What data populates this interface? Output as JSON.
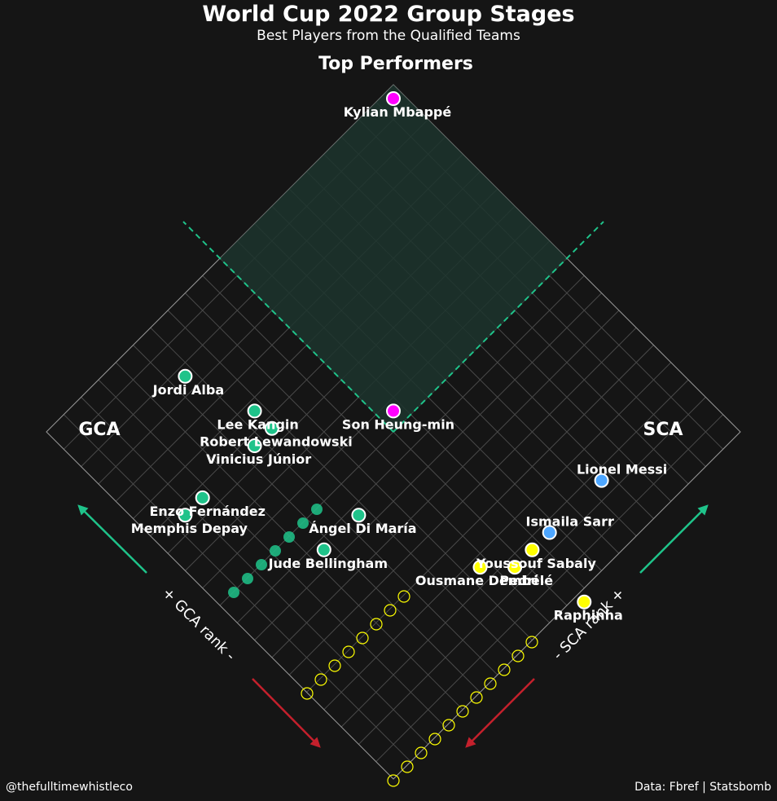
{
  "header": {
    "title": "World Cup 2022 Group Stages",
    "subtitle": "Best Players from the Qualified Teams"
  },
  "footer": {
    "credit": "@thefulltimewhistleco",
    "source": "Data: Fbref | Statsbomb"
  },
  "colors": {
    "background": "#151515",
    "grid": "#4a4a4a",
    "outline": "#9a9a9a",
    "top_region": "#1c342d",
    "teal": "#1fc38a",
    "red": "#c4202c",
    "magenta": "#ff00ff",
    "blue": "#4da6ff",
    "yellow": "#ffff00",
    "green": "#1fc38a"
  },
  "chart_data": {
    "type": "scatter",
    "title": "Top Performers",
    "left_axis_label": "GCA",
    "right_axis_label": "SCA",
    "left_arrow_label": "+ GCA rank -",
    "right_arrow_label": "- SCA rank +",
    "grid": true,
    "rank_max": 20,
    "top_region_threshold": 10,
    "players": [
      {
        "name": "Kylian Mbappé",
        "gca_rank": 1,
        "sca_rank": 1,
        "group": "top",
        "label": true
      },
      {
        "name": "Son Heung-min",
        "gca_rank": 10,
        "sca_rank": 10,
        "group": "top",
        "label": true
      },
      {
        "name": "Jordi Alba",
        "gca_rank": 3,
        "sca_rank": 15,
        "group": "gca",
        "label": true
      },
      {
        "name": "Lee Kangin",
        "gca_rank": 6,
        "sca_rank": 14,
        "group": "gca",
        "label": true
      },
      {
        "name": "Robert Lewandowski",
        "gca_rank": 7,
        "sca_rank": 14,
        "group": "gca",
        "label": true
      },
      {
        "name": "Vinicius Júnior",
        "gca_rank": 7,
        "sca_rank": 15,
        "group": "gca",
        "label": true
      },
      {
        "name": "Enzo Fernández",
        "gca_rank": 7,
        "sca_rank": 18,
        "group": "gca",
        "label": true
      },
      {
        "name": "Memphis Depay",
        "gca_rank": 7,
        "sca_rank": 19,
        "group": "gca",
        "label": true
      },
      {
        "name": "Ángel Di María",
        "gca_rank": 12,
        "sca_rank": 14,
        "group": "gca",
        "label": true
      },
      {
        "name": "Jude Bellingham",
        "gca_rank": 12,
        "sca_rank": 16,
        "group": "gca",
        "label": true
      },
      {
        "name": "Lionel Messi",
        "gca_rank": 18,
        "sca_rank": 6,
        "group": "sca_blue",
        "label": true
      },
      {
        "name": "Ismaila Sarr",
        "gca_rank": 18,
        "sca_rank": 9,
        "group": "sca_blue",
        "label": true
      },
      {
        "name": "Youssouf Sabaly",
        "gca_rank": 18,
        "sca_rank": 10,
        "group": "sca",
        "label": true
      },
      {
        "name": "Pedri",
        "gca_rank": 18,
        "sca_rank": 11,
        "group": "sca",
        "label": true
      },
      {
        "name": "Ousmane Dembélé",
        "gca_rank": 17,
        "sca_rank": 12,
        "group": "sca",
        "label": true
      },
      {
        "name": "Raphinha",
        "gca_rank": 21,
        "sca_rank": 10,
        "group": "sca",
        "label": true
      }
    ]
  }
}
